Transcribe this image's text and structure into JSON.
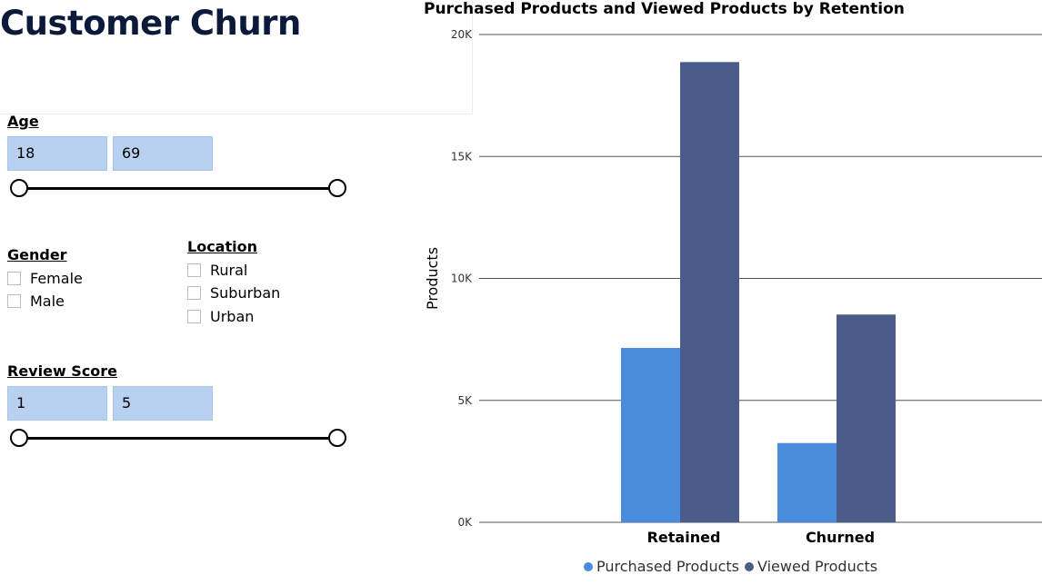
{
  "report": {
    "title": "Customer Churn"
  },
  "filters": {
    "age": {
      "label": "Age",
      "min": "18",
      "max": "69"
    },
    "gender": {
      "label": "Gender",
      "options": [
        "Female",
        "Male"
      ]
    },
    "location": {
      "label": "Location",
      "options": [
        "Rural",
        "Suburban",
        "Urban"
      ]
    },
    "review_score": {
      "label": "Review Score",
      "min": "1",
      "max": "5"
    }
  },
  "colors": {
    "purchased": "#4a8bdc",
    "viewed": "#4b5c8a",
    "gridline": "#555555"
  },
  "chart_data": {
    "type": "bar",
    "title": "Purchased Products and Viewed Products by Retention",
    "categories": [
      "Retained",
      "Churned"
    ],
    "series": [
      {
        "name": "Purchased Products",
        "values": [
          7150,
          3250
        ]
      },
      {
        "name": "Viewed Products",
        "values": [
          18870,
          8520
        ]
      }
    ],
    "xlabel": "",
    "ylabel": "Products",
    "ylim": [
      0,
      20000
    ],
    "yticks": [
      0,
      5000,
      10000,
      15000,
      20000
    ],
    "ytick_labels": [
      "0K",
      "5K",
      "10K",
      "15K",
      "20K"
    ],
    "grid": true,
    "legend": "bottom"
  }
}
